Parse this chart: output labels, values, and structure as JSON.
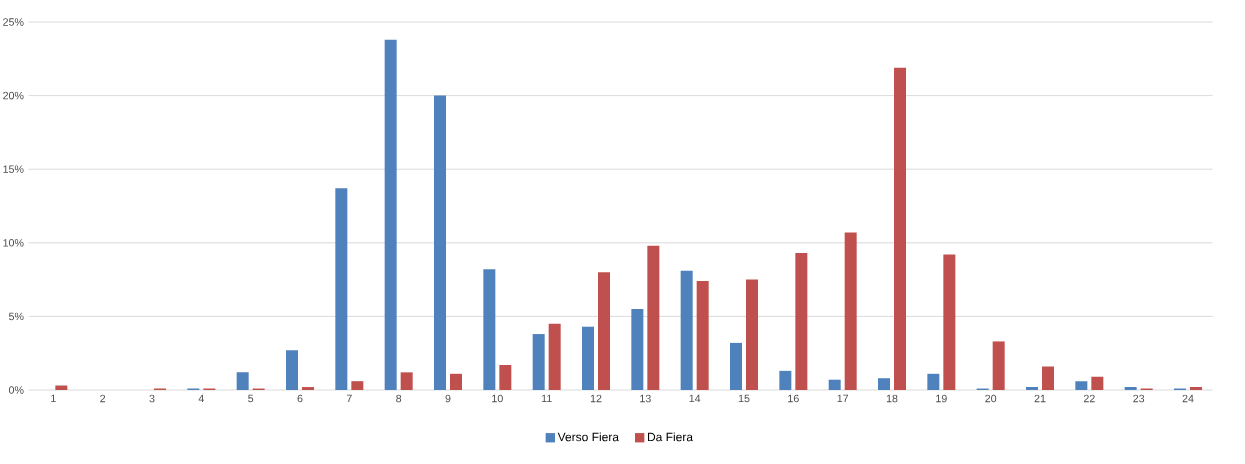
{
  "chart_data": {
    "type": "bar",
    "categories": [
      "1",
      "2",
      "3",
      "4",
      "5",
      "6",
      "7",
      "8",
      "9",
      "10",
      "11",
      "12",
      "13",
      "14",
      "15",
      "16",
      "17",
      "18",
      "19",
      "20",
      "21",
      "22",
      "23",
      "24"
    ],
    "series": [
      {
        "name": "Verso Fiera",
        "color": "#4f81bd",
        "values": [
          0,
          0,
          0,
          0.1,
          1.2,
          2.7,
          13.7,
          23.8,
          20.0,
          8.2,
          3.8,
          4.3,
          5.5,
          8.1,
          3.2,
          1.3,
          0.7,
          0.8,
          1.1,
          0.1,
          0.2,
          0.6,
          0.2,
          0.1
        ]
      },
      {
        "name": "Da Fiera",
        "color": "#c0504d",
        "values": [
          0.3,
          0,
          0.1,
          0.1,
          0.1,
          0.2,
          0.6,
          1.2,
          1.1,
          1.7,
          4.5,
          8.0,
          9.8,
          7.4,
          7.5,
          9.3,
          10.7,
          21.9,
          9.2,
          3.3,
          1.6,
          0.9,
          0.1,
          0.2
        ]
      }
    ],
    "ylim": [
      0,
      25
    ],
    "yticks": [
      {
        "value": 0,
        "label": "0%"
      },
      {
        "value": 5,
        "label": "5%"
      },
      {
        "value": 10,
        "label": "10%"
      },
      {
        "value": 15,
        "label": "15%"
      },
      {
        "value": 20,
        "label": "20%"
      },
      {
        "value": 25,
        "label": "25%"
      }
    ],
    "grid": "y",
    "legend": "bottom"
  }
}
